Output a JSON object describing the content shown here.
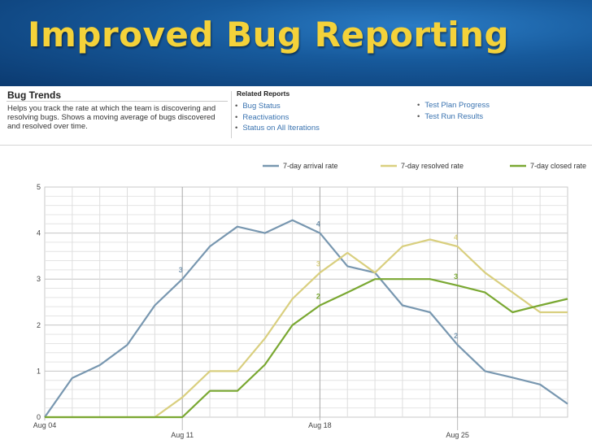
{
  "slide": {
    "title": "Improved Bug Reporting"
  },
  "report": {
    "title": "Bug Trends",
    "description": "Helps you track the rate at which the team is discovering and resolving bugs. Shows a moving average of bugs discovered and resolved over time.",
    "related_title": "Related Reports",
    "related_left": [
      "Bug Status",
      "Reactivations",
      "Status on All Iterations"
    ],
    "related_right": [
      "Test Plan Progress",
      "Test Run Results"
    ]
  },
  "colors": {
    "banner_title": "#f4d23a",
    "link": "#3a73b0"
  },
  "chart_data": {
    "type": "line",
    "x_labels": [
      "Aug 04",
      "Aug 11",
      "Aug 18",
      "Aug 25"
    ],
    "x_label_index": [
      0,
      5,
      10,
      15
    ],
    "ylim": [
      0,
      5
    ],
    "y_ticks": [
      "0",
      "1",
      "2",
      "3",
      "4",
      "5"
    ],
    "grid": true,
    "legend_position": "top-right",
    "series": [
      {
        "name": "7-day arrival rate",
        "color": "#7897b0",
        "values": [
          0,
          0.85,
          1.13,
          1.57,
          2.43,
          3.0,
          3.71,
          4.14,
          4.0,
          4.28,
          4.0,
          3.28,
          3.14,
          2.43,
          2.28,
          1.57,
          1.0,
          0.86,
          0.71,
          0.29
        ],
        "labels": [
          {
            "index": 5,
            "text": "3"
          },
          {
            "index": 10,
            "text": "4"
          },
          {
            "index": 15,
            "text": "2"
          }
        ]
      },
      {
        "name": "7-day resolved rate",
        "color": "#d9cf7f",
        "values": [
          0,
          0,
          0,
          0,
          0,
          0.43,
          1.0,
          1.0,
          1.71,
          2.57,
          3.14,
          3.57,
          3.14,
          3.71,
          3.86,
          3.71,
          3.14,
          2.71,
          2.28,
          2.28
        ],
        "labels": [
          {
            "index": 10,
            "text": "3"
          },
          {
            "index": 15,
            "text": "4"
          }
        ]
      },
      {
        "name": "7-day closed rate",
        "color": "#7aa832",
        "values": [
          0,
          0,
          0,
          0,
          0,
          0,
          0.57,
          0.57,
          1.14,
          2.0,
          2.43,
          2.71,
          3.0,
          3.0,
          3.0,
          2.86,
          2.71,
          2.28,
          2.43,
          2.57
        ],
        "labels": [
          {
            "index": 10,
            "text": "2"
          },
          {
            "index": 15,
            "text": "3"
          }
        ]
      }
    ]
  }
}
